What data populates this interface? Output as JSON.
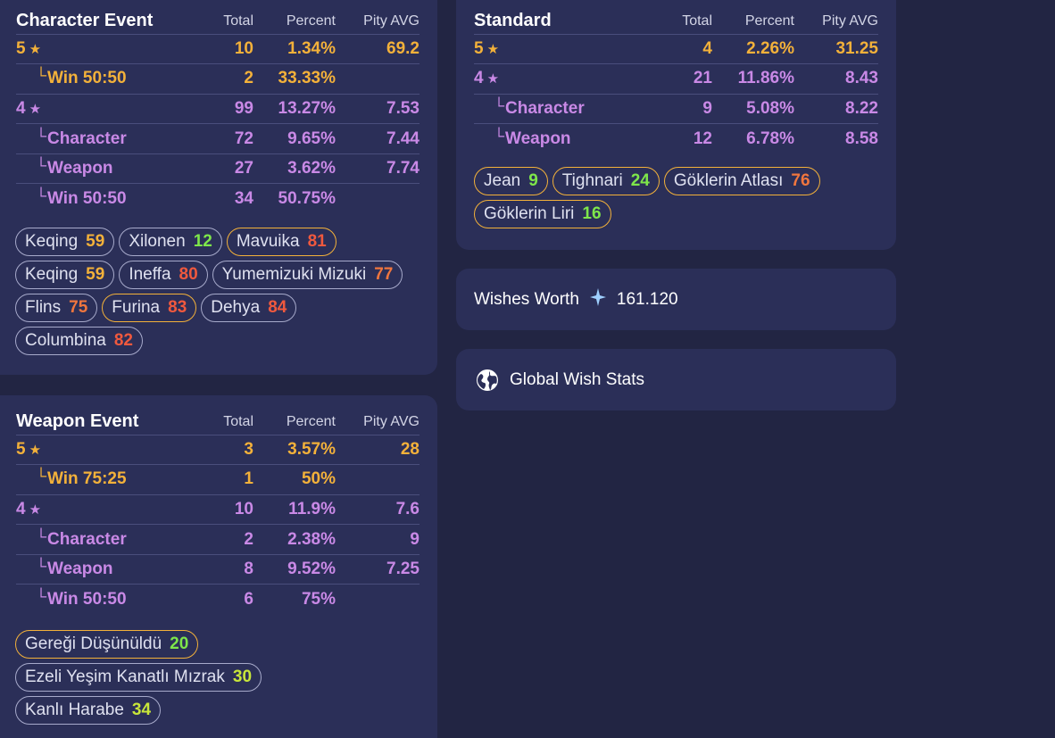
{
  "character_event": {
    "title": "Character Event",
    "headers": [
      "Total",
      "Percent",
      "Pity AVG"
    ],
    "rows": [
      {
        "label": "5",
        "star": "★",
        "sub": false,
        "color": "gold",
        "total": "10",
        "percent": "1.34%",
        "pity": "69.2"
      },
      {
        "label": "Win 50:50",
        "star": "",
        "sub": true,
        "color": "gold",
        "total": "2",
        "percent": "33.33%",
        "pity": ""
      },
      {
        "label": "4",
        "star": "★",
        "sub": false,
        "color": "purple",
        "total": "99",
        "percent": "13.27%",
        "pity": "7.53"
      },
      {
        "label": "Character",
        "star": "",
        "sub": true,
        "color": "purple",
        "total": "72",
        "percent": "9.65%",
        "pity": "7.44"
      },
      {
        "label": "Weapon",
        "star": "",
        "sub": true,
        "color": "purple",
        "total": "27",
        "percent": "3.62%",
        "pity": "7.74"
      },
      {
        "label": "Win 50:50",
        "star": "",
        "sub": true,
        "color": "purple",
        "total": "34",
        "percent": "50.75%",
        "pity": ""
      }
    ],
    "tags": [
      {
        "name": "Keqing",
        "pity": "59",
        "pity_color": "#f3b13a",
        "border": ""
      },
      {
        "name": "Xilonen",
        "pity": "12",
        "pity_color": "#7ee64a",
        "border": ""
      },
      {
        "name": "Mavuika",
        "pity": "81",
        "pity_color": "#f0593e",
        "border": "gold"
      },
      {
        "name": "Keqing",
        "pity": "59",
        "pity_color": "#f3b13a",
        "border": ""
      },
      {
        "name": "Ineffa",
        "pity": "80",
        "pity_color": "#f0593e",
        "border": ""
      },
      {
        "name": "Yumemizuki Mizuki",
        "pity": "77",
        "pity_color": "#f0763e",
        "border": ""
      },
      {
        "name": "Flins",
        "pity": "75",
        "pity_color": "#f0763e",
        "border": ""
      },
      {
        "name": "Furina",
        "pity": "83",
        "pity_color": "#f0593e",
        "border": "gold"
      },
      {
        "name": "Dehya",
        "pity": "84",
        "pity_color": "#f0593e",
        "border": ""
      },
      {
        "name": "Columbina",
        "pity": "82",
        "pity_color": "#f0593e",
        "border": ""
      }
    ]
  },
  "weapon_event": {
    "title": "Weapon Event",
    "headers": [
      "Total",
      "Percent",
      "Pity AVG"
    ],
    "rows": [
      {
        "label": "5",
        "star": "★",
        "sub": false,
        "color": "gold",
        "total": "3",
        "percent": "3.57%",
        "pity": "28"
      },
      {
        "label": "Win 75:25",
        "star": "",
        "sub": true,
        "color": "gold",
        "total": "1",
        "percent": "50%",
        "pity": ""
      },
      {
        "label": "4",
        "star": "★",
        "sub": false,
        "color": "purple",
        "total": "10",
        "percent": "11.9%",
        "pity": "7.6"
      },
      {
        "label": "Character",
        "star": "",
        "sub": true,
        "color": "purple",
        "total": "2",
        "percent": "2.38%",
        "pity": "9"
      },
      {
        "label": "Weapon",
        "star": "",
        "sub": true,
        "color": "purple",
        "total": "8",
        "percent": "9.52%",
        "pity": "7.25"
      },
      {
        "label": "Win 50:50",
        "star": "",
        "sub": true,
        "color": "purple",
        "total": "6",
        "percent": "75%",
        "pity": ""
      }
    ],
    "tags": [
      {
        "name": "Gereği Düşünüldü",
        "pity": "20",
        "pity_color": "#7ee64a",
        "border": "gold"
      },
      {
        "name": "Ezeli Yeşim Kanatlı Mızrak",
        "pity": "30",
        "pity_color": "#c8e63a",
        "border": ""
      },
      {
        "name": "Kanlı Harabe",
        "pity": "34",
        "pity_color": "#c8e63a",
        "border": ""
      }
    ]
  },
  "standard": {
    "title": "Standard",
    "headers": [
      "Total",
      "Percent",
      "Pity AVG"
    ],
    "rows": [
      {
        "label": "5",
        "star": "★",
        "sub": false,
        "color": "gold",
        "total": "4",
        "percent": "2.26%",
        "pity": "31.25"
      },
      {
        "label": "4",
        "star": "★",
        "sub": false,
        "color": "purple",
        "total": "21",
        "percent": "11.86%",
        "pity": "8.43"
      },
      {
        "label": "Character",
        "star": "",
        "sub": true,
        "color": "purple",
        "total": "9",
        "percent": "5.08%",
        "pity": "8.22"
      },
      {
        "label": "Weapon",
        "star": "",
        "sub": true,
        "color": "purple",
        "total": "12",
        "percent": "6.78%",
        "pity": "8.58"
      }
    ],
    "tags": [
      {
        "name": "Jean",
        "pity": "9",
        "pity_color": "#7ee64a",
        "border": "gold"
      },
      {
        "name": "Tighnari",
        "pity": "24",
        "pity_color": "#7ee64a",
        "border": "gold"
      },
      {
        "name": "Göklerin Atlası",
        "pity": "76",
        "pity_color": "#f0763e",
        "border": "gold"
      },
      {
        "name": "Göklerin Liri",
        "pity": "16",
        "pity_color": "#7ee64a",
        "border": "gold"
      }
    ]
  },
  "wishes_worth": {
    "label": "Wishes Worth",
    "icon": "sparkle-icon",
    "value": "161.120"
  },
  "global": {
    "label": "Global Wish Stats",
    "icon": "globe-icon"
  },
  "colors": {
    "gold": "#f3b13a",
    "purple": "#c989e6",
    "card": "#2b2f58",
    "background": "#222543"
  }
}
